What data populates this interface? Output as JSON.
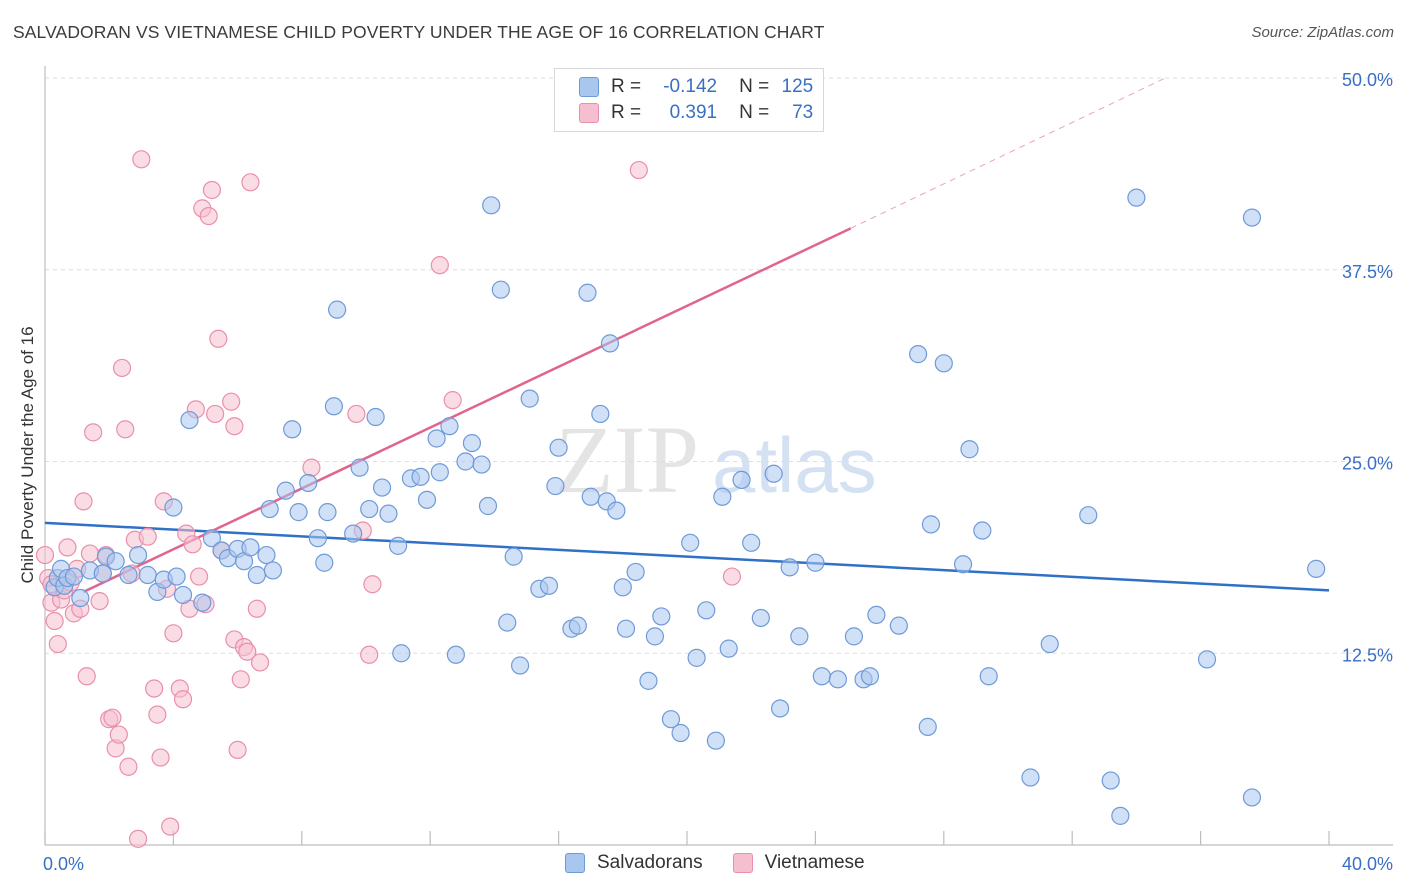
{
  "header": {
    "title": "SALVADORAN VS VIETNAMESE CHILD POVERTY UNDER THE AGE OF 16 CORRELATION CHART",
    "source": "Source: ZipAtlas.com"
  },
  "legend": {
    "rows": [
      {
        "r_label": "R =",
        "r_value": "-0.142",
        "n_label": "N =",
        "n_value": "125"
      },
      {
        "r_label": "R =",
        "r_value": "0.391",
        "n_label": "N =",
        "n_value": "73"
      }
    ],
    "bottom": [
      "Salvadorans",
      "Vietnamese"
    ]
  },
  "watermark": {
    "zip": "ZIP",
    "atlas": "atlas"
  },
  "colors": {
    "blue_fill": "#a9c6ee",
    "blue_stroke": "#6f9ad8",
    "blue_line": "#2f70c8",
    "pink_fill": "#f6bfd0",
    "pink_stroke": "#ea8fab",
    "pink_line": "#e0648c",
    "axis_label": "#3a6fc4"
  },
  "chart_data": {
    "type": "scatter",
    "title": "SALVADORAN VS VIETNAMESE CHILD POVERTY UNDER THE AGE OF 16 CORRELATION CHART",
    "xlabel": "",
    "ylabel": "Child Poverty Under the Age of 16",
    "xlim": [
      0,
      40
    ],
    "ylim": [
      0,
      50
    ],
    "x_tick_labels": [
      "0.0%",
      "40.0%"
    ],
    "y_ticks": [
      12.5,
      25.0,
      37.5,
      50.0
    ],
    "y_tick_labels": [
      "12.5%",
      "25.0%",
      "37.5%",
      "50.0%"
    ],
    "series": [
      {
        "name": "Salvadorans",
        "r": -0.142,
        "n": 125,
        "trend": {
          "x0": 0,
          "y0": 21.0,
          "x1": 40,
          "y1": 16.6
        },
        "points": [
          [
            0.3,
            16.8
          ],
          [
            0.4,
            17.4
          ],
          [
            0.5,
            18.0
          ],
          [
            0.6,
            16.9
          ],
          [
            0.7,
            17.4
          ],
          [
            0.9,
            17.5
          ],
          [
            1.1,
            16.1
          ],
          [
            1.4,
            17.9
          ],
          [
            1.8,
            17.7
          ],
          [
            1.9,
            18.8
          ],
          [
            2.2,
            18.5
          ],
          [
            2.6,
            17.6
          ],
          [
            2.9,
            18.9
          ],
          [
            3.2,
            17.6
          ],
          [
            3.5,
            16.5
          ],
          [
            3.7,
            17.3
          ],
          [
            4.1,
            17.5
          ],
          [
            4.3,
            16.3
          ],
          [
            4.0,
            22.0
          ],
          [
            4.5,
            27.7
          ],
          [
            4.9,
            15.8
          ],
          [
            5.2,
            20.0
          ],
          [
            5.5,
            19.2
          ],
          [
            5.7,
            18.7
          ],
          [
            6.0,
            19.3
          ],
          [
            6.2,
            18.5
          ],
          [
            6.4,
            19.4
          ],
          [
            6.6,
            17.6
          ],
          [
            6.9,
            18.9
          ],
          [
            7.1,
            17.9
          ],
          [
            7.0,
            21.9
          ],
          [
            7.5,
            23.1
          ],
          [
            7.7,
            27.1
          ],
          [
            7.9,
            21.7
          ],
          [
            8.2,
            23.6
          ],
          [
            8.5,
            20.0
          ],
          [
            8.7,
            18.4
          ],
          [
            8.8,
            21.7
          ],
          [
            9.0,
            28.6
          ],
          [
            9.1,
            34.9
          ],
          [
            9.6,
            20.3
          ],
          [
            9.8,
            24.6
          ],
          [
            10.1,
            21.9
          ],
          [
            10.3,
            27.9
          ],
          [
            10.5,
            23.3
          ],
          [
            10.7,
            21.6
          ],
          [
            11.0,
            19.5
          ],
          [
            11.1,
            12.5
          ],
          [
            11.4,
            23.9
          ],
          [
            11.7,
            24.0
          ],
          [
            11.9,
            22.5
          ],
          [
            12.2,
            26.5
          ],
          [
            12.3,
            24.3
          ],
          [
            12.6,
            27.3
          ],
          [
            12.8,
            12.4
          ],
          [
            13.1,
            25.0
          ],
          [
            13.3,
            26.2
          ],
          [
            13.6,
            24.8
          ],
          [
            13.8,
            22.1
          ],
          [
            13.9,
            41.7
          ],
          [
            14.2,
            36.2
          ],
          [
            14.4,
            14.5
          ],
          [
            14.6,
            18.8
          ],
          [
            14.8,
            11.7
          ],
          [
            15.1,
            29.1
          ],
          [
            15.4,
            16.7
          ],
          [
            15.7,
            16.9
          ],
          [
            15.9,
            23.4
          ],
          [
            16.0,
            25.9
          ],
          [
            16.4,
            14.1
          ],
          [
            16.6,
            14.3
          ],
          [
            16.9,
            36.0
          ],
          [
            17.0,
            22.7
          ],
          [
            17.3,
            28.1
          ],
          [
            17.6,
            32.7
          ],
          [
            17.5,
            22.4
          ],
          [
            17.8,
            21.8
          ],
          [
            18.0,
            16.8
          ],
          [
            18.1,
            14.1
          ],
          [
            18.4,
            17.8
          ],
          [
            18.8,
            10.7
          ],
          [
            19.0,
            13.6
          ],
          [
            19.2,
            14.9
          ],
          [
            19.5,
            8.2
          ],
          [
            19.8,
            7.3
          ],
          [
            20.1,
            19.7
          ],
          [
            20.3,
            12.2
          ],
          [
            20.6,
            15.3
          ],
          [
            20.9,
            6.8
          ],
          [
            21.1,
            22.7
          ],
          [
            21.3,
            12.8
          ],
          [
            21.7,
            23.8
          ],
          [
            22.0,
            19.7
          ],
          [
            22.3,
            14.8
          ],
          [
            22.7,
            24.2
          ],
          [
            22.9,
            8.9
          ],
          [
            23.2,
            18.1
          ],
          [
            23.5,
            13.6
          ],
          [
            24.0,
            18.4
          ],
          [
            24.2,
            11.0
          ],
          [
            24.7,
            10.8
          ],
          [
            25.2,
            13.6
          ],
          [
            25.5,
            10.8
          ],
          [
            25.7,
            11.0
          ],
          [
            25.9,
            15.0
          ],
          [
            26.6,
            14.3
          ],
          [
            27.2,
            32.0
          ],
          [
            27.6,
            20.9
          ],
          [
            27.5,
            7.7
          ],
          [
            28.0,
            31.4
          ],
          [
            28.6,
            18.3
          ],
          [
            28.8,
            25.8
          ],
          [
            29.2,
            20.5
          ],
          [
            29.4,
            11.0
          ],
          [
            30.7,
            4.4
          ],
          [
            31.3,
            13.1
          ],
          [
            32.5,
            21.5
          ],
          [
            33.2,
            4.2
          ],
          [
            33.5,
            1.9
          ],
          [
            34.0,
            42.2
          ],
          [
            36.2,
            12.1
          ],
          [
            37.6,
            40.9
          ],
          [
            37.6,
            3.1
          ],
          [
            39.6,
            18.0
          ]
        ]
      },
      {
        "name": "Vietnamese",
        "r": 0.391,
        "n": 73,
        "trend": {
          "x0": 1.2,
          "y0": 16.5,
          "x1": 25.1,
          "y1": 40.2
        },
        "trend_dashed": {
          "x0": 25.1,
          "y0": 40.2,
          "x1": 34.9,
          "y1": 50.0
        },
        "points": [
          [
            0.0,
            18.9
          ],
          [
            0.1,
            17.4
          ],
          [
            0.2,
            15.8
          ],
          [
            0.3,
            14.6
          ],
          [
            0.4,
            13.1
          ],
          [
            0.5,
            16.0
          ],
          [
            0.6,
            16.6
          ],
          [
            0.7,
            19.4
          ],
          [
            0.8,
            17.1
          ],
          [
            0.9,
            15.1
          ],
          [
            1.0,
            18.0
          ],
          [
            1.1,
            15.4
          ],
          [
            1.2,
            22.4
          ],
          [
            1.3,
            11.0
          ],
          [
            1.4,
            19.0
          ],
          [
            1.5,
            26.9
          ],
          [
            1.7,
            15.9
          ],
          [
            1.8,
            17.7
          ],
          [
            1.9,
            18.9
          ],
          [
            2.0,
            8.2
          ],
          [
            2.1,
            8.3
          ],
          [
            2.2,
            6.3
          ],
          [
            2.3,
            7.2
          ],
          [
            2.4,
            31.1
          ],
          [
            2.5,
            27.1
          ],
          [
            2.6,
            5.1
          ],
          [
            2.7,
            17.7
          ],
          [
            2.8,
            19.9
          ],
          [
            2.9,
            0.4
          ],
          [
            3.0,
            44.7
          ],
          [
            3.2,
            20.1
          ],
          [
            3.4,
            10.2
          ],
          [
            3.5,
            8.5
          ],
          [
            3.6,
            5.7
          ],
          [
            3.7,
            22.4
          ],
          [
            3.8,
            16.7
          ],
          [
            3.9,
            1.2
          ],
          [
            4.0,
            13.8
          ],
          [
            4.2,
            10.2
          ],
          [
            4.3,
            9.5
          ],
          [
            4.4,
            20.3
          ],
          [
            4.5,
            15.4
          ],
          [
            4.6,
            19.6
          ],
          [
            4.7,
            28.4
          ],
          [
            4.8,
            17.5
          ],
          [
            4.9,
            41.5
          ],
          [
            5.0,
            15.7
          ],
          [
            5.1,
            41.0
          ],
          [
            5.2,
            42.7
          ],
          [
            5.3,
            28.1
          ],
          [
            5.4,
            33.0
          ],
          [
            5.5,
            19.2
          ],
          [
            5.8,
            28.9
          ],
          [
            5.9,
            27.3
          ],
          [
            5.9,
            13.4
          ],
          [
            6.0,
            6.2
          ],
          [
            6.1,
            10.8
          ],
          [
            6.2,
            12.9
          ],
          [
            6.3,
            12.6
          ],
          [
            6.4,
            43.2
          ],
          [
            6.6,
            15.4
          ],
          [
            6.7,
            11.9
          ],
          [
            8.3,
            24.6
          ],
          [
            9.7,
            28.1
          ],
          [
            9.9,
            20.5
          ],
          [
            10.1,
            12.4
          ],
          [
            10.2,
            17.0
          ],
          [
            12.3,
            37.8
          ],
          [
            12.7,
            29.0
          ],
          [
            17.9,
            47.1
          ],
          [
            18.5,
            44.0
          ],
          [
            21.4,
            17.5
          ],
          [
            0.2,
            17.0
          ]
        ]
      }
    ]
  }
}
